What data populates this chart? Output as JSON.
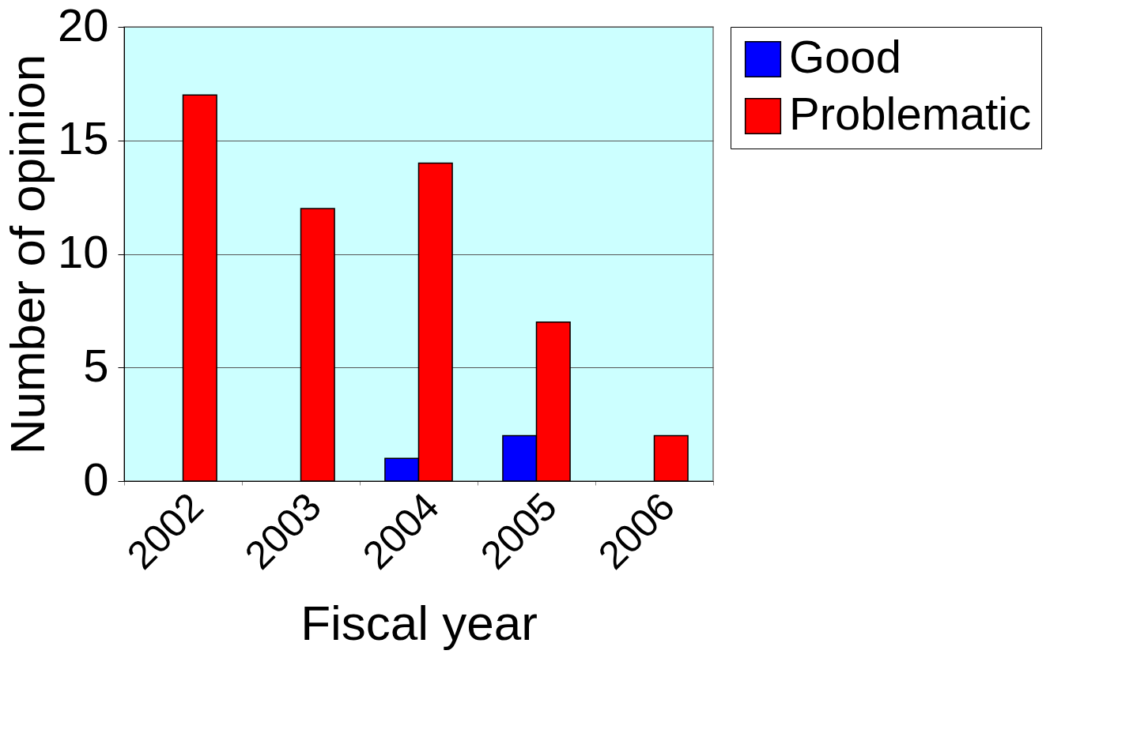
{
  "chart_data": {
    "type": "bar",
    "xlabel": "Fiscal year",
    "ylabel": "Number of opinion",
    "categories": [
      "2002",
      "2003",
      "2004",
      "2005",
      "2006"
    ],
    "series": [
      {
        "name": "Good",
        "color": "#0000ff",
        "values": [
          null,
          null,
          1,
          2,
          null
        ]
      },
      {
        "name": "Problematic",
        "color": "#ff0000",
        "values": [
          17,
          12,
          14,
          7,
          2
        ]
      }
    ],
    "ylim": [
      0,
      20
    ],
    "yticks": [
      0,
      5,
      10,
      15,
      20
    ],
    "grid": "y",
    "legend": "right"
  }
}
